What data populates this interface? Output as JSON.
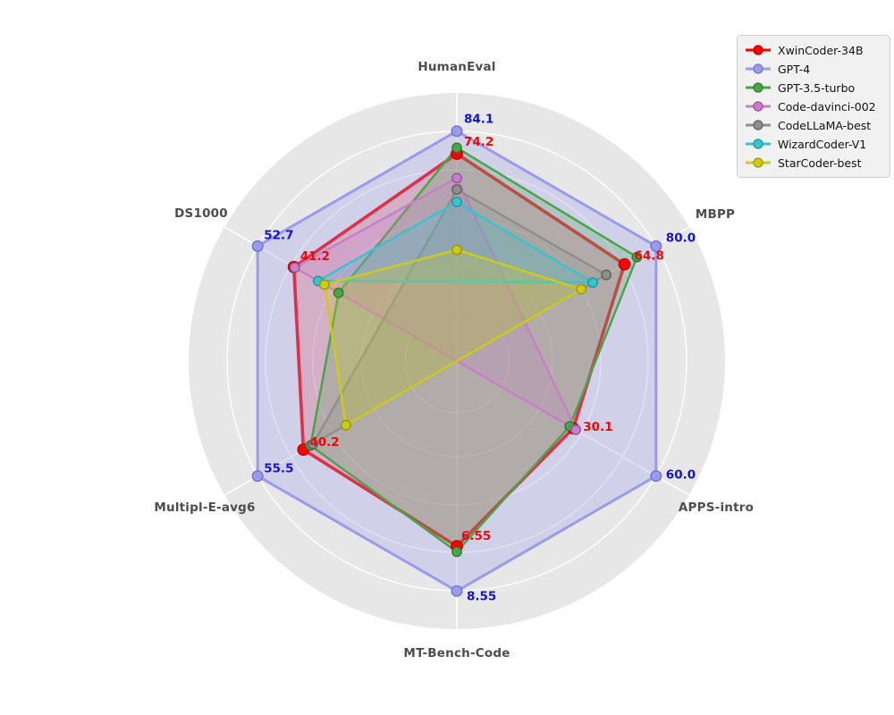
{
  "chart_data": {
    "type": "radar",
    "title": "",
    "axes": [
      "HumanEval",
      "MBPP",
      "APPS-intro",
      "MT-Bench-Code",
      "Multipl-E-avg6",
      "DS1000"
    ],
    "axis_max": [
      84.1,
      80.0,
      60.0,
      8.55,
      55.5,
      52.7
    ],
    "grid": "on",
    "legend_position": "upper-right",
    "background_color": "#e7e7e7",
    "series": [
      {
        "name": "XwinCoder-34B",
        "color": "#ff0000",
        "edge": "#c00000",
        "fill_alpha": 0.2,
        "values": [
          74.2,
          64.8,
          30.1,
          6.55,
          40.2,
          41.2
        ],
        "labels": [
          "74.2",
          "64.8",
          "30.1",
          "6.55",
          "40.2",
          "41.2"
        ],
        "label_color": "#ee0808"
      },
      {
        "name": "GPT-4",
        "color": "#9b9bee",
        "edge": "#7272d6",
        "fill_alpha": 0.3,
        "values": [
          84.1,
          80.0,
          60.0,
          8.55,
          55.5,
          52.7
        ],
        "labels": [
          "84.1",
          "80.0",
          "60.0",
          "8.55",
          "55.5",
          "52.7"
        ],
        "label_color": "#1414cc"
      },
      {
        "name": "GPT-3.5-turbo",
        "color": "#4aa44a",
        "edge": "#2e7d2e",
        "fill_alpha": 0.25,
        "values": [
          76.8,
          70.8,
          28.8,
          6.8,
          37.8,
          27.0
        ]
      },
      {
        "name": "Code-davinci-002",
        "color": "#c77fc7",
        "edge": "#9a4f9a",
        "fill_alpha": 0.25,
        "values": [
          63.5,
          null,
          31.0,
          null,
          null,
          40.9
        ]
      },
      {
        "name": "CodeLLaMA-best",
        "color": "#8f8f8f",
        "edge": "#5f5f5f",
        "fill_alpha": 0.25,
        "values": [
          58.5,
          56.0,
          null,
          null,
          37.0,
          null
        ]
      },
      {
        "name": "WizardCoder-V1",
        "color": "#38c3ce",
        "edge": "#1d96a0",
        "fill_alpha": 0.25,
        "values": [
          53.0,
          49.5,
          null,
          null,
          null,
          33.5
        ]
      },
      {
        "name": "StarCoder-best",
        "color": "#cbcb1d",
        "edge": "#9a9a00",
        "fill_alpha": 0.25,
        "values": [
          32.0,
          44.0,
          null,
          null,
          26.0,
          31.5
        ]
      }
    ]
  },
  "legend": {
    "items": [
      "XwinCoder-34B",
      "GPT-4",
      "GPT-3.5-turbo",
      "Code-davinci-002",
      "CodeLLaMA-best",
      "WizardCoder-V1",
      "StarCoder-best"
    ]
  }
}
